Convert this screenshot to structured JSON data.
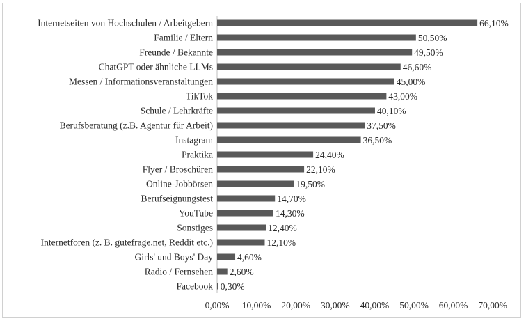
{
  "chart_data": {
    "type": "bar",
    "orientation": "horizontal",
    "title": "",
    "xlabel": "",
    "ylabel": "",
    "xlim": [
      0,
      70
    ],
    "grid": false,
    "bar_color": "#595959",
    "categories": [
      "Internetseiten von Hochschulen / Arbeitgebern",
      "Familie / Eltern",
      "Freunde / Bekannte",
      "ChatGPT oder ähnliche LLMs",
      "Messen / Informationsveranstaltungen",
      "TikTok",
      "Schule / Lehrkräfte",
      "Berufsberatung (z.B. Agentur für Arbeit)",
      "Instagram",
      "Praktika",
      "Flyer / Broschüren",
      "Online-Jobbörsen",
      "Berufseignungstest",
      "YouTube",
      "Sonstiges",
      "Internetforen (z. B. gutefrage.net, Reddit etc.)",
      "Girls' und Boys' Day",
      "Radio / Fernsehen",
      "Facebook"
    ],
    "values": [
      66.1,
      50.5,
      49.5,
      46.6,
      45.0,
      43.0,
      40.1,
      37.5,
      36.5,
      24.4,
      22.1,
      19.5,
      14.7,
      14.3,
      12.4,
      12.1,
      4.6,
      2.6,
      0.3
    ],
    "value_labels": [
      "66,10%",
      "50,50%",
      "49,50%",
      "46,60%",
      "45,00%",
      "43,00%",
      "40,10%",
      "37,50%",
      "36,50%",
      "24,40%",
      "22,10%",
      "19,50%",
      "14,70%",
      "14,30%",
      "12,40%",
      "12,10%",
      "4,60%",
      "2,60%",
      "0,30%"
    ],
    "x_ticks": [
      0,
      10,
      20,
      30,
      40,
      50,
      60,
      70
    ],
    "x_tick_labels": [
      "0,00%",
      "10,00%",
      "20,00%",
      "30,00%",
      "40,00%",
      "50,00%",
      "60,00%",
      "70,00%"
    ]
  }
}
